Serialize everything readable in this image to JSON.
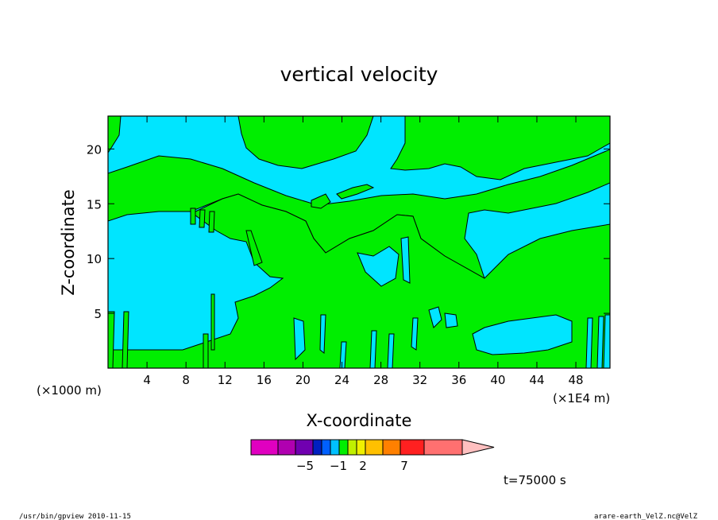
{
  "chart_data": {
    "type": "contour",
    "title": "vertical velocity",
    "xlabel": "X-coordinate",
    "ylabel": "Z-coordinate",
    "x_unit_left": "(×1000 m)",
    "x_unit_right": "(×1E4 m)",
    "x_ticks": [
      4,
      8,
      12,
      16,
      20,
      24,
      28,
      32,
      36,
      40,
      44,
      48
    ],
    "y_ticks": [
      5,
      10,
      15,
      20
    ],
    "xlim": [
      0,
      51.5
    ],
    "ylim": [
      0,
      23
    ],
    "fill_colors": {
      "negative": "#00e5ff",
      "positive": "#00ee00"
    },
    "colorbar": {
      "colors": [
        "#e000c0",
        "#b000b0",
        "#7000b0",
        "#0020c0",
        "#0060ff",
        "#00c0ff",
        "#00ee00",
        "#c0f000",
        "#f0f000",
        "#ffc000",
        "#ff8000",
        "#ff2020",
        "#ff7070",
        "#ffc0c0"
      ],
      "labels": [
        "−5",
        "−1",
        "2",
        "7"
      ]
    },
    "time_label": "t=75000 s"
  },
  "footer": {
    "left": "/usr/bin/gpview  2010-11-15",
    "right": "arare-earth_VelZ.nc@VelZ"
  }
}
